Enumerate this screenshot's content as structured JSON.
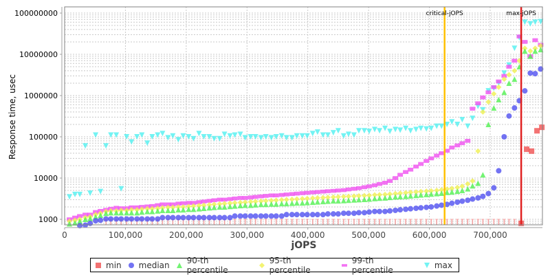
{
  "chart_data": {
    "type": "scatter",
    "title": "",
    "xlabel": "jOPS",
    "ylabel": "Response time, usec",
    "xlim": [
      0,
      787000
    ],
    "ylim": [
      700,
      140000000
    ],
    "yscale": "log",
    "x_ticks": [
      "0",
      "100,000",
      "200,000",
      "300,000",
      "400,000",
      "500,000",
      "600,000",
      "700,000"
    ],
    "x_tick_values": [
      0,
      100000,
      200000,
      300000,
      400000,
      500000,
      600000,
      700000
    ],
    "y_ticks": [
      "1000",
      "10000",
      "100000",
      "1000000",
      "10000000",
      "100000000"
    ],
    "y_tick_values": [
      1000,
      10000,
      100000,
      1000000,
      10000000,
      100000000
    ],
    "grid": true,
    "legend_position": "bottom",
    "annotations": [
      {
        "label": "critical-jOPS",
        "x": 625000,
        "color": "#ffc000"
      },
      {
        "label": "max-jOPS",
        "x": 751000,
        "color": "#e02020"
      }
    ],
    "series": [
      {
        "name": "min",
        "color": "#f05050",
        "marker": "square",
        "x": [
          751000,
          760000,
          768000,
          777000,
          785000
        ],
        "values": [
          800,
          50000,
          45000,
          140000,
          170000
        ]
      },
      {
        "name": "median",
        "color": "#5050f0",
        "marker": "circle",
        "x": [
          8000,
          17000,
          25000,
          34000,
          42000,
          51000,
          59000,
          68000,
          76000,
          85000,
          93000,
          102000,
          110000,
          119000,
          127000,
          136000,
          144000,
          153000,
          161000,
          170000,
          178000,
          187000,
          195000,
          204000,
          212000,
          221000,
          229000,
          238000,
          246000,
          255000,
          263000,
          272000,
          280000,
          289000,
          297000,
          306000,
          314000,
          323000,
          331000,
          340000,
          348000,
          357000,
          365000,
          374000,
          382000,
          391000,
          399000,
          408000,
          416000,
          425000,
          433000,
          442000,
          450000,
          459000,
          467000,
          476000,
          484000,
          493000,
          501000,
          510000,
          518000,
          527000,
          535000,
          544000,
          552000,
          561000,
          569000,
          578000,
          586000,
          595000,
          603000,
          612000,
          620000,
          629000,
          637000,
          646000,
          654000,
          663000,
          671000,
          680000,
          688000,
          697000,
          706000,
          714000,
          723000,
          731000,
          740000,
          748000,
          757000,
          766000,
          774000,
          783000
        ],
        "values": [
          650,
          650,
          700,
          720,
          800,
          920,
          950,
          1020,
          1020,
          1020,
          1020,
          1020,
          1020,
          1020,
          1020,
          1020,
          1020,
          1020,
          1100,
          1100,
          1100,
          1100,
          1100,
          1100,
          1100,
          1100,
          1100,
          1100,
          1100,
          1100,
          1100,
          1100,
          1200,
          1200,
          1200,
          1200,
          1200,
          1200,
          1200,
          1200,
          1200,
          1200,
          1300,
          1300,
          1300,
          1300,
          1300,
          1300,
          1300,
          1300,
          1350,
          1350,
          1350,
          1400,
          1400,
          1400,
          1450,
          1450,
          1500,
          1550,
          1550,
          1550,
          1600,
          1650,
          1700,
          1750,
          1800,
          1850,
          1900,
          1950,
          2000,
          2100,
          2200,
          2300,
          2450,
          2600,
          2750,
          2900,
          3100,
          3300,
          3600,
          4200,
          5800,
          15000,
          100000,
          320000,
          500000,
          750000,
          1300000,
          3500000,
          3400000,
          4400000
        ]
      },
      {
        "name": "90-th percentile",
        "color": "#50f050",
        "marker": "triangle-up",
        "x": [
          8000,
          17000,
          25000,
          34000,
          42000,
          51000,
          59000,
          68000,
          76000,
          85000,
          93000,
          102000,
          110000,
          119000,
          127000,
          136000,
          144000,
          153000,
          161000,
          170000,
          178000,
          187000,
          195000,
          204000,
          212000,
          221000,
          229000,
          238000,
          246000,
          255000,
          263000,
          272000,
          280000,
          289000,
          297000,
          306000,
          314000,
          323000,
          331000,
          340000,
          348000,
          357000,
          365000,
          374000,
          382000,
          391000,
          399000,
          408000,
          416000,
          425000,
          433000,
          442000,
          450000,
          459000,
          467000,
          476000,
          484000,
          493000,
          501000,
          510000,
          518000,
          527000,
          535000,
          544000,
          552000,
          561000,
          569000,
          578000,
          586000,
          595000,
          603000,
          612000,
          620000,
          629000,
          637000,
          646000,
          654000,
          663000,
          671000,
          680000,
          688000,
          697000,
          706000,
          714000,
          723000,
          731000,
          740000,
          748000,
          757000,
          766000,
          774000,
          783000
        ],
        "values": [
          780,
          820,
          900,
          1000,
          1050,
          1150,
          1250,
          1400,
          1450,
          1450,
          1450,
          1450,
          1450,
          1450,
          1500,
          1550,
          1550,
          1600,
          1650,
          1650,
          1650,
          1700,
          1700,
          1750,
          1750,
          1800,
          1850,
          1900,
          1950,
          2000,
          2000,
          2050,
          2100,
          2150,
          2200,
          2200,
          2250,
          2300,
          2300,
          2350,
          2350,
          2400,
          2400,
          2450,
          2500,
          2500,
          2550,
          2600,
          2650,
          2700,
          2750,
          2800,
          2800,
          2850,
          2900,
          2950,
          3000,
          3050,
          3100,
          3200,
          3250,
          3300,
          3400,
          3500,
          3550,
          3600,
          3700,
          3800,
          3900,
          4000,
          4100,
          4200,
          4300,
          4500,
          4600,
          4800,
          5000,
          5500,
          6500,
          7500,
          12000,
          200000,
          500000,
          800000,
          1200000,
          2000000,
          2500000,
          5000000,
          12000000,
          9000000,
          12000000,
          13000000
        ]
      },
      {
        "name": "95-th percentile",
        "color": "#f0f050",
        "marker": "diamond",
        "x": [
          8000,
          17000,
          25000,
          34000,
          42000,
          51000,
          59000,
          68000,
          76000,
          85000,
          93000,
          102000,
          110000,
          119000,
          127000,
          136000,
          144000,
          153000,
          161000,
          170000,
          178000,
          187000,
          195000,
          204000,
          212000,
          221000,
          229000,
          238000,
          246000,
          255000,
          263000,
          272000,
          280000,
          289000,
          297000,
          306000,
          314000,
          323000,
          331000,
          340000,
          348000,
          357000,
          365000,
          374000,
          382000,
          391000,
          399000,
          408000,
          416000,
          425000,
          433000,
          442000,
          450000,
          459000,
          467000,
          476000,
          484000,
          493000,
          501000,
          510000,
          518000,
          527000,
          535000,
          544000,
          552000,
          561000,
          569000,
          578000,
          586000,
          595000,
          603000,
          612000,
          620000,
          629000,
          637000,
          646000,
          654000,
          663000,
          671000,
          680000,
          688000,
          697000,
          706000,
          714000,
          723000,
          731000,
          740000,
          748000,
          757000,
          766000,
          774000,
          783000
        ],
        "values": [
          900,
          950,
          1000,
          1100,
          1150,
          1300,
          1400,
          1550,
          1600,
          1600,
          1650,
          1650,
          1700,
          1700,
          1750,
          1800,
          1800,
          1850,
          1900,
          1950,
          1950,
          2000,
          2000,
          2050,
          2100,
          2150,
          2200,
          2250,
          2300,
          2350,
          2400,
          2450,
          2500,
          2550,
          2600,
          2650,
          2700,
          2750,
          2800,
          2850,
          2900,
          2950,
          3000,
          3050,
          3100,
          3150,
          3200,
          3250,
          3300,
          3350,
          3400,
          3450,
          3500,
          3550,
          3600,
          3650,
          3700,
          3750,
          3800,
          3900,
          3950,
          4000,
          4100,
          4200,
          4300,
          4400,
          4500,
          4600,
          4700,
          4800,
          4900,
          5000,
          5200,
          5400,
          5600,
          5900,
          6300,
          7200,
          8500,
          45000,
          400000,
          700000,
          1100000,
          1600000,
          2500000,
          3200000,
          4000000,
          7000000,
          14000000,
          12000000,
          14000000,
          16000000
        ]
      },
      {
        "name": "99-th percentile",
        "color": "#f050f0",
        "marker": "square-cross",
        "x": [
          8000,
          17000,
          25000,
          34000,
          42000,
          51000,
          59000,
          68000,
          76000,
          85000,
          93000,
          102000,
          110000,
          119000,
          127000,
          136000,
          144000,
          153000,
          161000,
          170000,
          178000,
          187000,
          195000,
          204000,
          212000,
          221000,
          229000,
          238000,
          246000,
          255000,
          263000,
          272000,
          280000,
          289000,
          297000,
          306000,
          314000,
          323000,
          331000,
          340000,
          348000,
          357000,
          365000,
          374000,
          382000,
          391000,
          399000,
          408000,
          416000,
          425000,
          433000,
          442000,
          450000,
          459000,
          467000,
          476000,
          484000,
          493000,
          501000,
          510000,
          518000,
          527000,
          535000,
          544000,
          552000,
          561000,
          569000,
          578000,
          586000,
          595000,
          603000,
          612000,
          620000,
          629000,
          637000,
          646000,
          654000,
          663000,
          671000,
          680000,
          688000,
          697000,
          706000,
          714000,
          723000,
          731000,
          740000,
          748000,
          757000,
          766000,
          774000,
          783000
        ],
        "values": [
          1000,
          1100,
          1200,
          1300,
          1300,
          1500,
          1600,
          1700,
          1800,
          1900,
          1850,
          1850,
          1950,
          1950,
          2000,
          2050,
          2100,
          2200,
          2300,
          2300,
          2300,
          2400,
          2450,
          2500,
          2500,
          2600,
          2700,
          2800,
          2900,
          3000,
          3000,
          3100,
          3200,
          3300,
          3300,
          3400,
          3500,
          3600,
          3700,
          3800,
          3800,
          3900,
          4000,
          4100,
          4200,
          4300,
          4400,
          4500,
          4600,
          4700,
          4800,
          4900,
          5000,
          5100,
          5300,
          5500,
          5700,
          6000,
          6300,
          6700,
          7200,
          7700,
          8500,
          10000,
          12000,
          14000,
          16000,
          19000,
          22000,
          26000,
          30000,
          35000,
          40000,
          46000,
          55000,
          62000,
          70000,
          80000,
          480000,
          650000,
          900000,
          1200000,
          1600000,
          2200000,
          3000000,
          5000000,
          7000000,
          27000000,
          20000000,
          9000000,
          22000000,
          17000000
        ]
      },
      {
        "name": "max",
        "color": "#50f0f0",
        "marker": "triangle-down",
        "x": [
          8000,
          17000,
          25000,
          34000,
          42000,
          51000,
          59000,
          68000,
          76000,
          85000,
          93000,
          102000,
          110000,
          119000,
          127000,
          136000,
          144000,
          153000,
          161000,
          170000,
          178000,
          187000,
          195000,
          204000,
          212000,
          221000,
          229000,
          238000,
          246000,
          255000,
          263000,
          272000,
          280000,
          289000,
          297000,
          306000,
          314000,
          323000,
          331000,
          340000,
          348000,
          357000,
          365000,
          374000,
          382000,
          391000,
          399000,
          408000,
          416000,
          425000,
          433000,
          442000,
          450000,
          459000,
          467000,
          476000,
          484000,
          493000,
          501000,
          510000,
          518000,
          527000,
          535000,
          544000,
          552000,
          561000,
          569000,
          578000,
          586000,
          595000,
          603000,
          612000,
          620000,
          629000,
          637000,
          646000,
          654000,
          663000,
          671000,
          680000,
          688000,
          697000,
          706000,
          714000,
          723000,
          731000,
          740000,
          748000,
          757000,
          766000,
          774000,
          783000
        ],
        "values": [
          3500,
          4000,
          4000,
          60000,
          4300,
          110000,
          4700,
          60000,
          110000,
          110000,
          5500,
          100000,
          75000,
          100000,
          110000,
          70000,
          100000,
          110000,
          120000,
          95000,
          105000,
          85000,
          105000,
          100000,
          90000,
          120000,
          100000,
          100000,
          90000,
          90000,
          115000,
          105000,
          110000,
          115000,
          95000,
          100000,
          100000,
          95000,
          100000,
          95000,
          100000,
          105000,
          95000,
          95000,
          105000,
          105000,
          105000,
          120000,
          130000,
          110000,
          110000,
          125000,
          140000,
          105000,
          115000,
          110000,
          140000,
          140000,
          135000,
          150000,
          140000,
          160000,
          135000,
          150000,
          145000,
          160000,
          140000,
          150000,
          160000,
          155000,
          160000,
          180000,
          180000,
          200000,
          230000,
          200000,
          260000,
          180000,
          280000,
          550000,
          450000,
          1300000,
          1500000,
          2000000,
          3500000,
          5500000,
          14000000,
          25000000,
          60000000,
          55000000,
          60000000,
          62000000
        ]
      }
    ]
  },
  "legend": {
    "items": [
      {
        "label": "min",
        "color": "#f05050",
        "marker": "square"
      },
      {
        "label": "median",
        "color": "#5050f0",
        "marker": "circle"
      },
      {
        "label": "90-th percentile",
        "color": "#50f050",
        "marker": "triangle-up"
      },
      {
        "label": "95-th percentile",
        "color": "#f0f050",
        "marker": "diamond"
      },
      {
        "label": "99-th percentile",
        "color": "#f050f0",
        "marker": "square-small"
      },
      {
        "label": "max",
        "color": "#50f0f0",
        "marker": "triangle-down"
      }
    ]
  }
}
